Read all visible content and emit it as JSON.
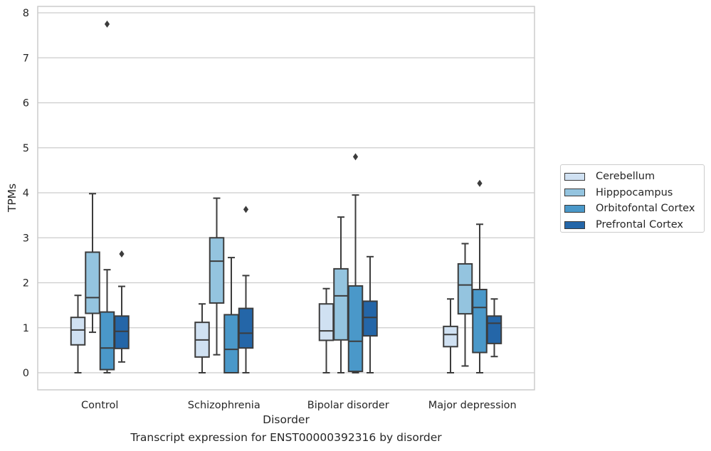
{
  "chart_data": {
    "type": "box",
    "xlabel": "Disorder",
    "ylabel": "TPMs",
    "caption": "Transcript expression for ENST00000392316 by disorder",
    "ylim": [
      -0.38,
      8.15
    ],
    "yticks": [
      "0",
      "1",
      "2",
      "3",
      "4",
      "5",
      "6",
      "7",
      "8"
    ],
    "grid": "horizontal",
    "legend_position": "right",
    "categories": [
      "Control",
      "Schizophrenia",
      "Bipolar disorder",
      "Major depression"
    ],
    "series": [
      {
        "name": "Cerebellum",
        "color": "#d0e1f2",
        "boxes": [
          {
            "whisker_low": 0.0,
            "q1": 0.62,
            "median": 0.95,
            "q3": 1.23,
            "whisker_high": 1.72,
            "outliers": []
          },
          {
            "whisker_low": 0.0,
            "q1": 0.35,
            "median": 0.73,
            "q3": 1.12,
            "whisker_high": 1.53,
            "outliers": []
          },
          {
            "whisker_low": 0.0,
            "q1": 0.72,
            "median": 0.93,
            "q3": 1.53,
            "whisker_high": 1.87,
            "outliers": []
          },
          {
            "whisker_low": 0.0,
            "q1": 0.58,
            "median": 0.85,
            "q3": 1.03,
            "whisker_high": 1.64,
            "outliers": []
          }
        ]
      },
      {
        "name": "Hipppocampus",
        "color": "#94c4df",
        "boxes": [
          {
            "whisker_low": 0.9,
            "q1": 1.32,
            "median": 1.67,
            "q3": 2.68,
            "whisker_high": 3.98,
            "outliers": []
          },
          {
            "whisker_low": 0.4,
            "q1": 1.55,
            "median": 2.48,
            "q3": 3.0,
            "whisker_high": 3.88,
            "outliers": []
          },
          {
            "whisker_low": 0.0,
            "q1": 0.73,
            "median": 1.71,
            "q3": 2.31,
            "whisker_high": 3.46,
            "outliers": []
          },
          {
            "whisker_low": 0.15,
            "q1": 1.31,
            "median": 1.95,
            "q3": 2.42,
            "whisker_high": 2.87,
            "outliers": []
          }
        ]
      },
      {
        "name": "Orbitofontal Cortex",
        "color": "#4a98c9",
        "boxes": [
          {
            "whisker_low": 0.0,
            "q1": 0.07,
            "median": 0.55,
            "q3": 1.35,
            "whisker_high": 2.29,
            "outliers": [
              7.75
            ]
          },
          {
            "whisker_low": 0.0,
            "q1": 0.0,
            "median": 0.52,
            "q3": 1.29,
            "whisker_high": 2.56,
            "outliers": []
          },
          {
            "whisker_low": 0.0,
            "q1": 0.03,
            "median": 0.7,
            "q3": 1.93,
            "whisker_high": 3.95,
            "outliers": [
              4.8
            ]
          },
          {
            "whisker_low": 0.0,
            "q1": 0.45,
            "median": 1.45,
            "q3": 1.85,
            "whisker_high": 3.3,
            "outliers": [
              4.21
            ]
          }
        ]
      },
      {
        "name": "Prefrontal Cortex",
        "color": "#2466a8",
        "boxes": [
          {
            "whisker_low": 0.24,
            "q1": 0.54,
            "median": 0.92,
            "q3": 1.26,
            "whisker_high": 1.92,
            "outliers": [
              2.64
            ]
          },
          {
            "whisker_low": 0.0,
            "q1": 0.55,
            "median": 0.88,
            "q3": 1.43,
            "whisker_high": 2.16,
            "outliers": [
              3.63
            ]
          },
          {
            "whisker_low": 0.0,
            "q1": 0.82,
            "median": 1.23,
            "q3": 1.59,
            "whisker_high": 2.58,
            "outliers": []
          },
          {
            "whisker_low": 0.36,
            "q1": 0.65,
            "median": 1.1,
            "q3": 1.26,
            "whisker_high": 1.64,
            "outliers": []
          }
        ]
      }
    ]
  }
}
